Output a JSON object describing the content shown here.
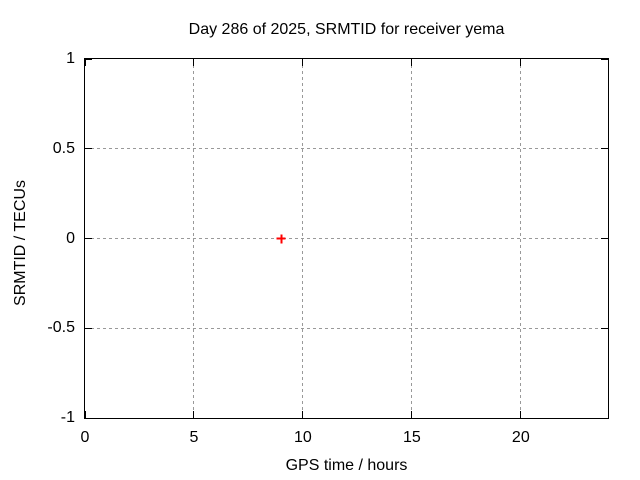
{
  "title": "Day 286 of 2025, SRMTID for receiver yema",
  "colors": {
    "background": "#ffffff",
    "text": "#000000",
    "border": "#000000",
    "grid": "#999999",
    "marker": "#ff0000"
  },
  "chart_data": {
    "type": "scatter",
    "title": "Day 286 of 2025, SRMTID for receiver yema",
    "xlabel": "GPS time / hours",
    "ylabel": "SRMTID / TECUs",
    "xlim": [
      0,
      24
    ],
    "ylim": [
      -1,
      1
    ],
    "x_ticks": [
      0,
      5,
      10,
      15,
      20
    ],
    "y_ticks": [
      1,
      0.5,
      0,
      -0.5,
      -1
    ],
    "grid": true,
    "grid_style": "dashed",
    "legend_position": "none",
    "series": [
      {
        "name": "SRMTID",
        "marker": "plus",
        "color": "#ff0000",
        "points": [
          {
            "x": 9,
            "y": 0
          }
        ]
      }
    ]
  }
}
